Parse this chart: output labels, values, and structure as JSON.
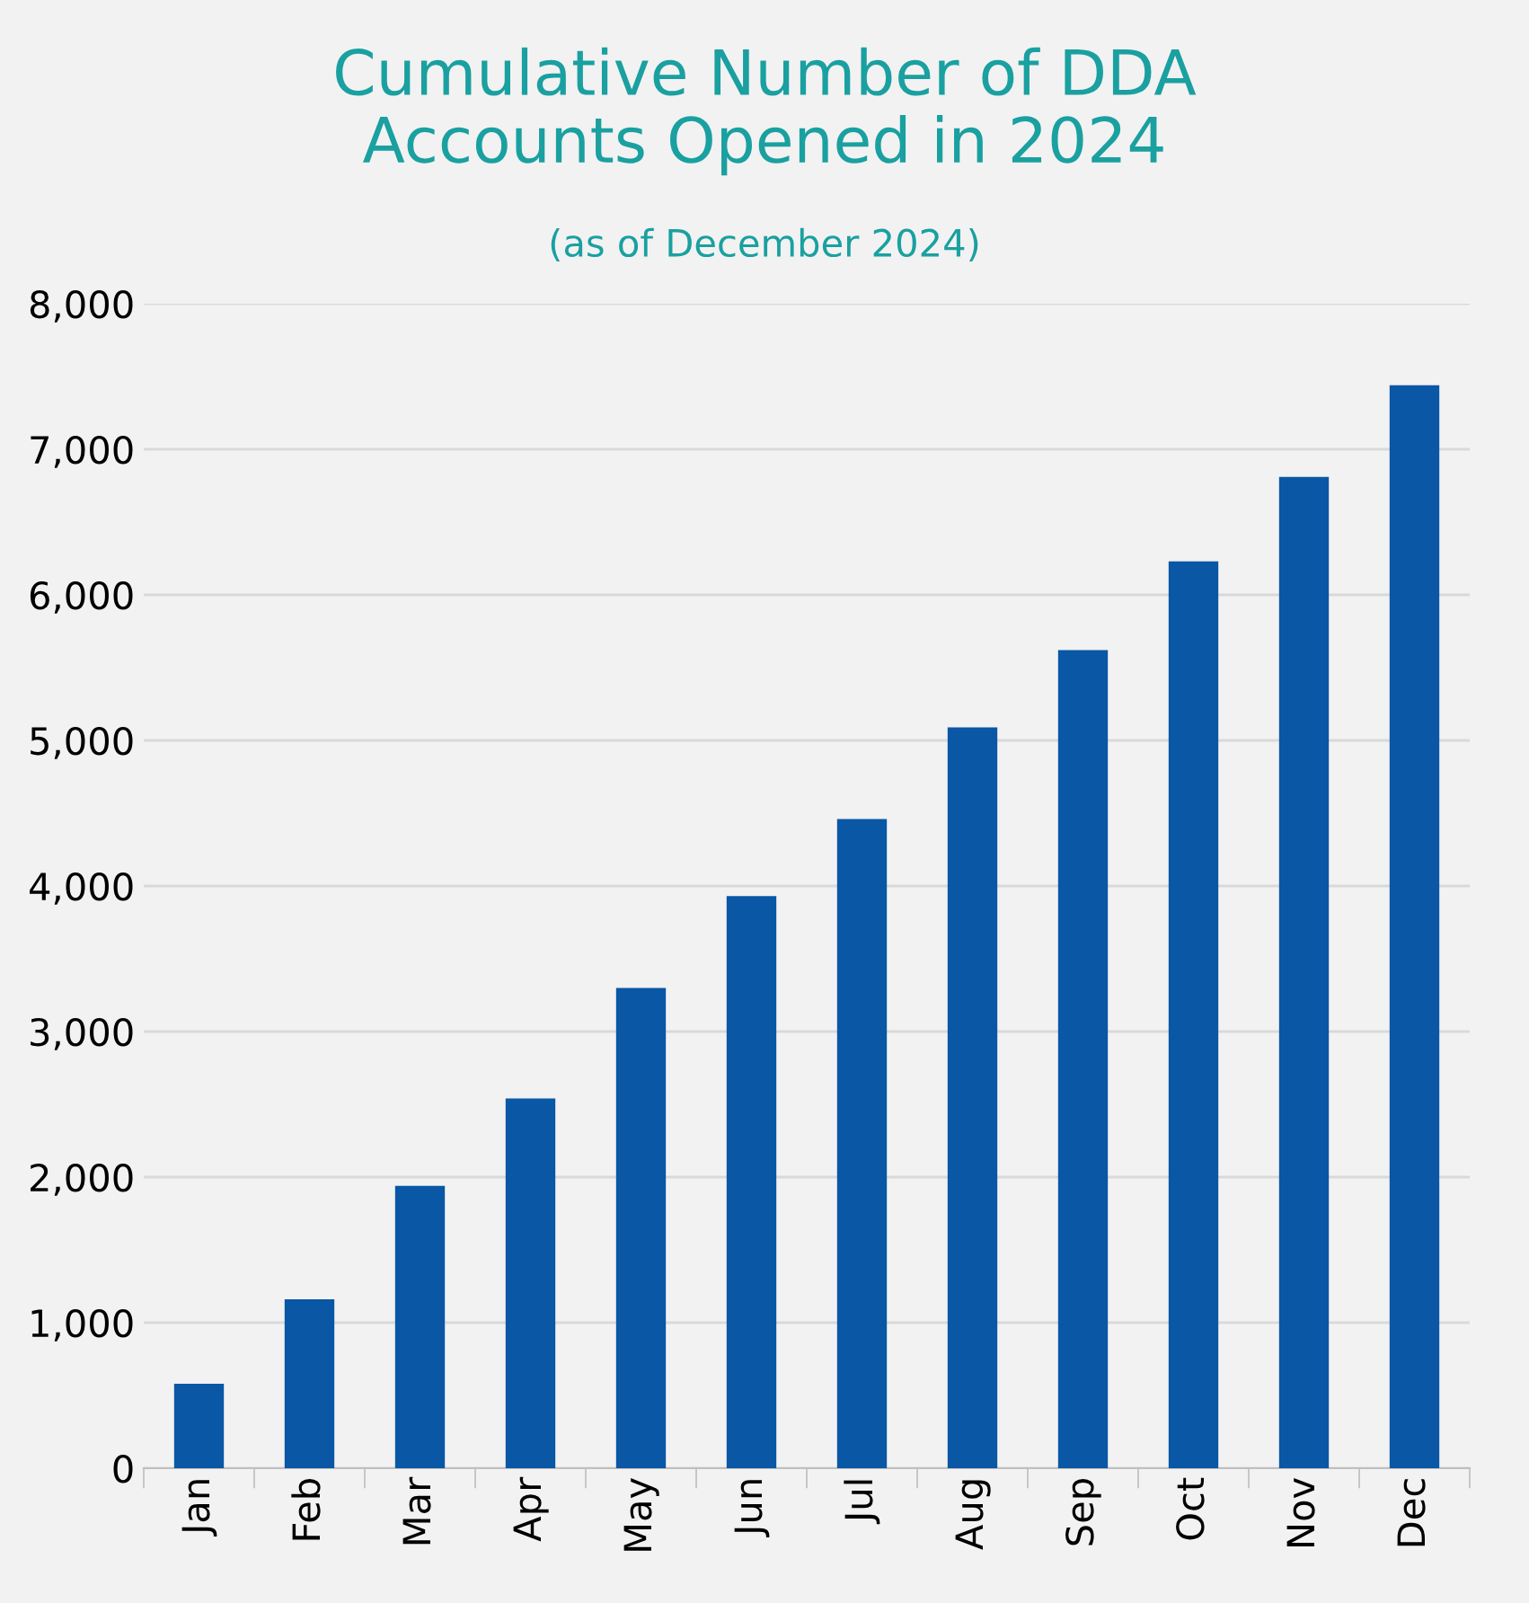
{
  "chart_data": {
    "type": "bar",
    "title": "Cumulative Number of DDA\nAccounts Opened in 2024",
    "subtitle": "(as of December 2024)",
    "categories": [
      "Jan",
      "Feb",
      "Mar",
      "Apr",
      "May",
      "Jun",
      "Jul",
      "Aug",
      "Sep",
      "Oct",
      "Nov",
      "Dec"
    ],
    "values": [
      580,
      1160,
      1940,
      2540,
      3300,
      3930,
      4460,
      5090,
      5620,
      6230,
      6810,
      7440
    ],
    "color": "#0957a5",
    "ylim": [
      0,
      8000
    ],
    "yticks": [
      0,
      {
        "value": 1000,
        "label": "1,000"
      },
      {
        "value": 2000,
        "label": "2,000"
      },
      {
        "value": 3000,
        "label": "3,000"
      },
      {
        "value": 4000,
        "label": "4,000"
      },
      {
        "value": 5000,
        "label": "5,000"
      },
      {
        "value": 6000,
        "label": "6,000"
      },
      {
        "value": 7000,
        "label": "7,000"
      },
      {
        "value": 8000,
        "label": "8,000"
      }
    ],
    "grid": "y",
    "legend": false
  }
}
